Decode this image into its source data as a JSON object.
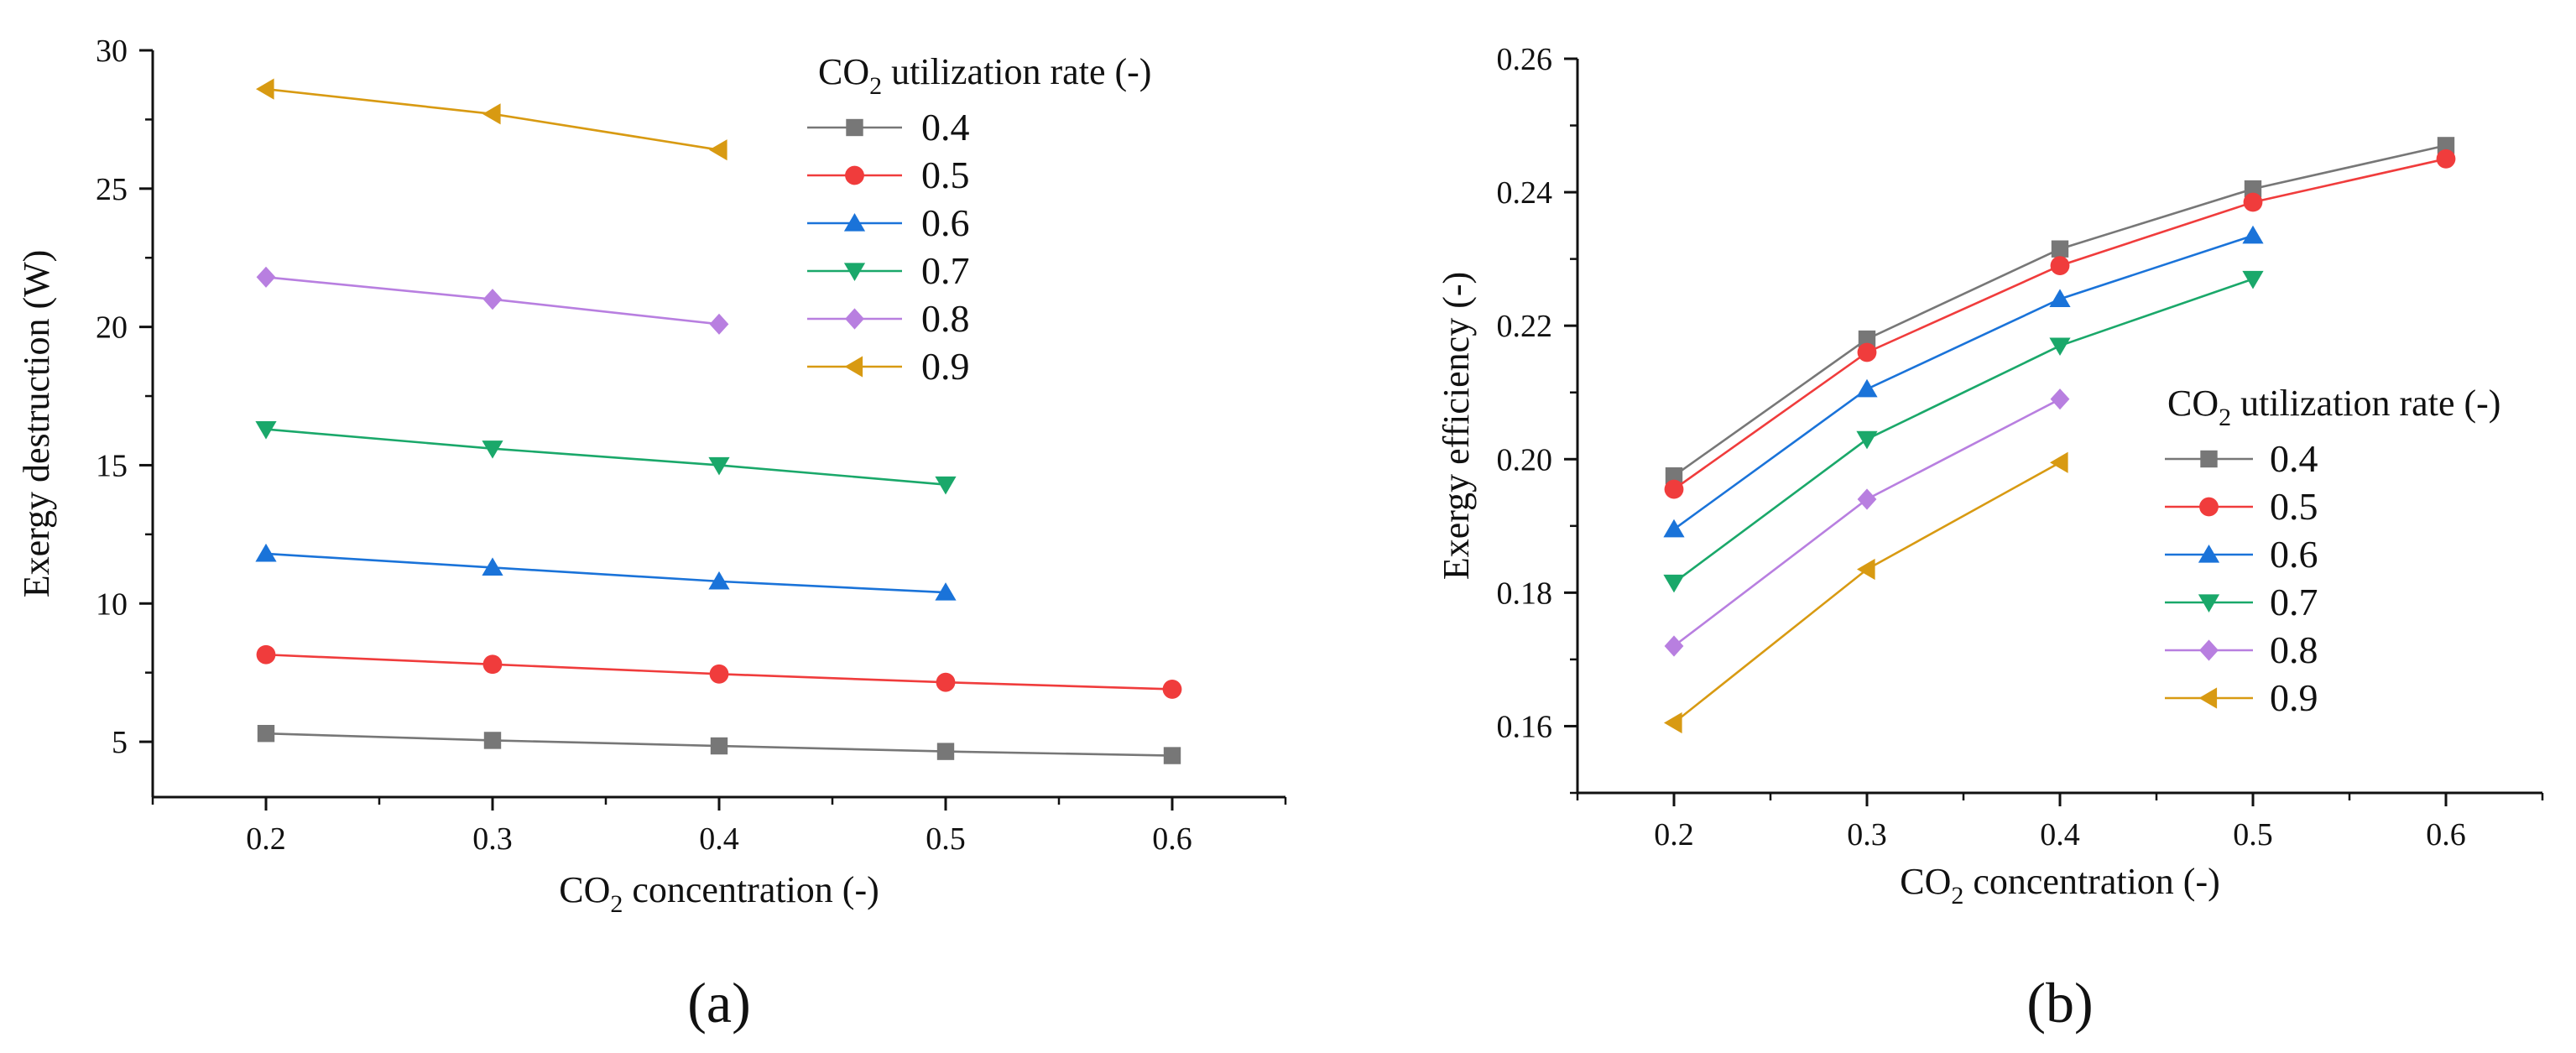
{
  "chart_data": [
    {
      "type": "line",
      "panel_label": "(a)",
      "xlabel_main": "CO",
      "xlabel_sub": "2",
      "xlabel_rest": " concentration (-)",
      "ylabel": "Exergy destruction (W)",
      "xlim": [
        0.15,
        0.65
      ],
      "ylim": [
        3,
        30
      ],
      "xticks": [
        "0.2",
        "0.3",
        "0.4",
        "0.5",
        "0.6"
      ],
      "yticks": [
        "5",
        "10",
        "15",
        "20",
        "25",
        "30"
      ],
      "legend_title_main": "CO",
      "legend_title_sub": "2",
      "legend_title_rest": " utilization rate (-)",
      "legend_position": "top-right",
      "series": [
        {
          "name": "0.4",
          "color": "#777777",
          "marker": "square",
          "x": [
            0.2,
            0.3,
            0.4,
            0.5,
            0.6
          ],
          "values": [
            5.3,
            5.05,
            4.85,
            4.65,
            4.5
          ]
        },
        {
          "name": "0.5",
          "color": "#f03c3c",
          "marker": "circle",
          "x": [
            0.2,
            0.3,
            0.4,
            0.5,
            0.6
          ],
          "values": [
            8.15,
            7.8,
            7.45,
            7.15,
            6.9
          ]
        },
        {
          "name": "0.6",
          "color": "#1a73d9",
          "marker": "triangle-up",
          "x": [
            0.2,
            0.3,
            0.4,
            0.5
          ],
          "values": [
            11.8,
            11.3,
            10.8,
            10.4
          ]
        },
        {
          "name": "0.7",
          "color": "#1aa86a",
          "marker": "triangle-down",
          "x": [
            0.2,
            0.3,
            0.4,
            0.5
          ],
          "values": [
            16.3,
            15.6,
            15.0,
            14.3
          ]
        },
        {
          "name": "0.8",
          "color": "#b87fe0",
          "marker": "diamond",
          "x": [
            0.2,
            0.3,
            0.4
          ],
          "values": [
            21.8,
            21.0,
            20.1
          ]
        },
        {
          "name": "0.9",
          "color": "#d89a12",
          "marker": "triangle-left",
          "x": [
            0.2,
            0.3,
            0.4
          ],
          "values": [
            28.6,
            27.7,
            26.4
          ]
        }
      ]
    },
    {
      "type": "line",
      "panel_label": "(b)",
      "xlabel_main": "CO",
      "xlabel_sub": "2",
      "xlabel_rest": " concentration (-)",
      "ylabel": "Exergy efficiency (-)",
      "xlim": [
        0.15,
        0.65
      ],
      "ylim": [
        0.15,
        0.26
      ],
      "xticks": [
        "0.2",
        "0.3",
        "0.4",
        "0.5",
        "0.6"
      ],
      "yticks": [
        "0.16",
        "0.18",
        "0.20",
        "0.22",
        "0.24",
        "0.26"
      ],
      "legend_title_main": "CO",
      "legend_title_sub": "2",
      "legend_title_rest": " utilization rate (-)",
      "legend_position": "center-right",
      "series": [
        {
          "name": "0.4",
          "color": "#777777",
          "marker": "square",
          "x": [
            0.2,
            0.3,
            0.4,
            0.5,
            0.6
          ],
          "values": [
            0.1975,
            0.218,
            0.2315,
            0.2405,
            0.247
          ]
        },
        {
          "name": "0.5",
          "color": "#f03c3c",
          "marker": "circle",
          "x": [
            0.2,
            0.3,
            0.4,
            0.5,
            0.6
          ],
          "values": [
            0.1955,
            0.216,
            0.229,
            0.2385,
            0.245
          ]
        },
        {
          "name": "0.6",
          "color": "#1a73d9",
          "marker": "triangle-up",
          "x": [
            0.2,
            0.3,
            0.4,
            0.5
          ],
          "values": [
            0.1895,
            0.2105,
            0.224,
            0.2335
          ]
        },
        {
          "name": "0.7",
          "color": "#1aa86a",
          "marker": "triangle-down",
          "x": [
            0.2,
            0.3,
            0.4,
            0.5
          ],
          "values": [
            0.1815,
            0.203,
            0.217,
            0.227
          ]
        },
        {
          "name": "0.8",
          "color": "#b87fe0",
          "marker": "diamond",
          "x": [
            0.2,
            0.3,
            0.4
          ],
          "values": [
            0.172,
            0.194,
            0.209
          ]
        },
        {
          "name": "0.9",
          "color": "#d89a12",
          "marker": "triangle-left",
          "x": [
            0.2,
            0.3,
            0.4
          ],
          "values": [
            0.1605,
            0.1835,
            0.1995
          ]
        }
      ]
    }
  ]
}
